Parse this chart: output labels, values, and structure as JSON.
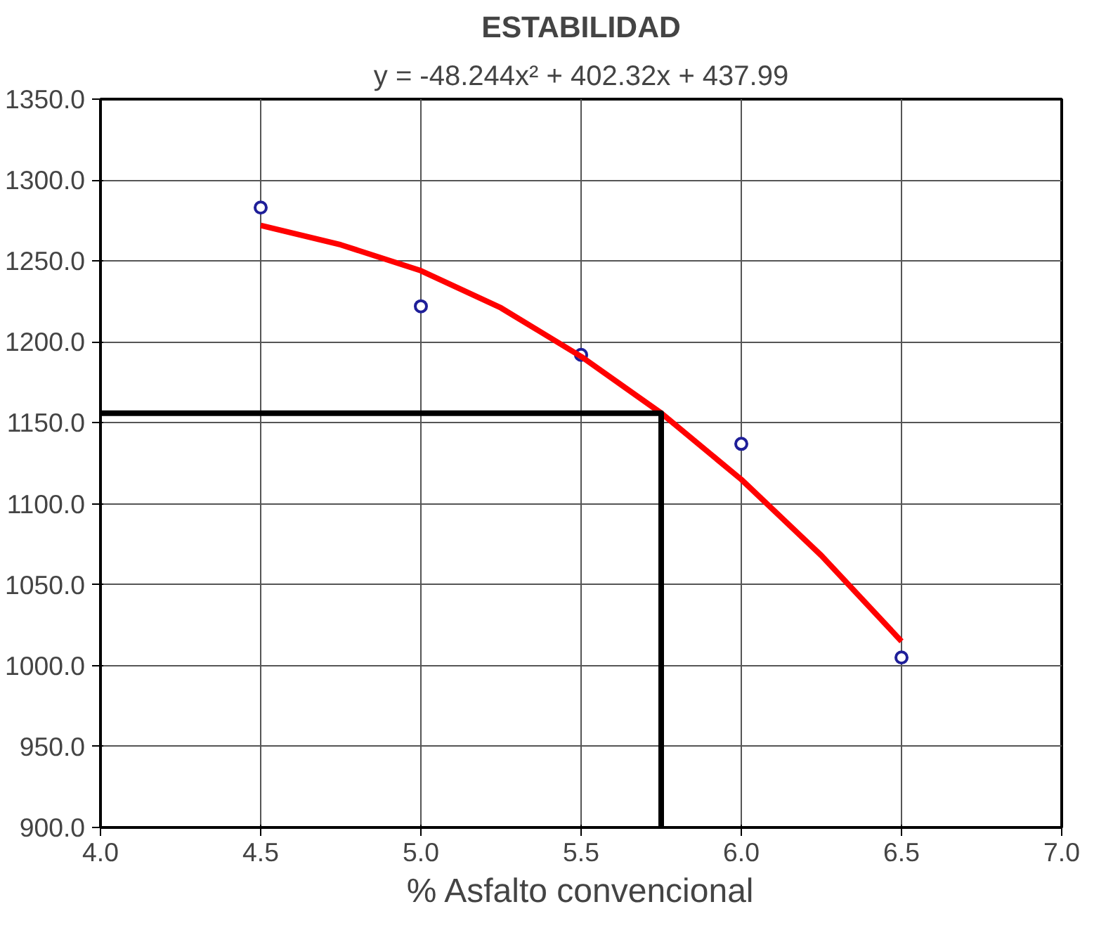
{
  "chart_data": {
    "type": "scatter",
    "title": "ESTABILIDAD",
    "xlabel": "% Asfalto convencional",
    "annotations": [
      "y = -48.244x² + 402.32x + 437.99"
    ],
    "x": [
      4.5,
      5.0,
      5.5,
      6.0,
      6.5
    ],
    "series": [
      {
        "color": "#1f1f99",
        "marker": "circle",
        "values": [
          1283,
          1222,
          1192,
          1137,
          1005
        ]
      },
      {
        "type": "line",
        "color": "#ff0000",
        "marker": "none",
        "x": [
          4.5,
          4.75,
          5.0,
          5.25,
          5.5,
          5.75,
          6.0,
          6.25,
          6.5
        ],
        "values": [
          1272,
          1260,
          1244,
          1221,
          1191,
          1156,
          1115,
          1068,
          1015
        ]
      },
      {
        "type": "line",
        "color": "#000000",
        "marker": "none",
        "x": [
          4.0,
          5.75,
          5.75
        ],
        "values": [
          1156,
          1156,
          900
        ]
      }
    ],
    "xlim": [
      4.0,
      7.0
    ],
    "ylim": [
      900,
      1350
    ],
    "xticks": [
      {
        "value": 4.0,
        "label": "4.0"
      },
      {
        "value": 4.5,
        "label": "4.5"
      },
      {
        "value": 5.0,
        "label": "5.0"
      },
      {
        "value": 5.5,
        "label": "5.5"
      },
      {
        "value": 6.0,
        "label": "6.0"
      },
      {
        "value": 6.5,
        "label": "6.5"
      },
      {
        "value": 7.0,
        "label": "7.0"
      }
    ],
    "yticks": [
      {
        "value": 900,
        "label": "900.0"
      },
      {
        "value": 950,
        "label": "950.0"
      },
      {
        "value": 1000,
        "label": "1000.0"
      },
      {
        "value": 1050,
        "label": "1050.0"
      },
      {
        "value": 1100,
        "label": "1100.0"
      },
      {
        "value": 1150,
        "label": "1150.0"
      },
      {
        "value": 1200,
        "label": "1200.0"
      },
      {
        "value": 1250,
        "label": "1250.0"
      },
      {
        "value": 1300,
        "label": "1300.0"
      },
      {
        "value": 1350,
        "label": "1350.0"
      }
    ],
    "grid": true
  }
}
